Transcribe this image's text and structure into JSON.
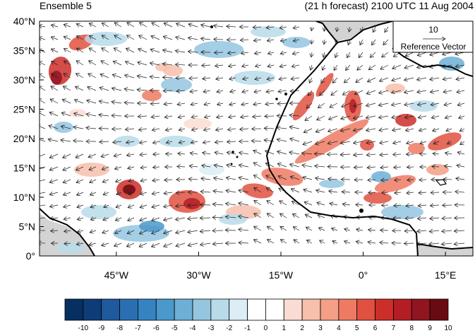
{
  "title_left": "Ensemble 5",
  "title_right": "(21 h forecast) 2100 UTC 11 Aug 2004",
  "map": {
    "lat_range": [
      0,
      40
    ],
    "lon_range": [
      -59,
      20
    ],
    "lat_ticks": [
      "40°N",
      "35°N",
      "30°N",
      "25°N",
      "20°N",
      "15°N",
      "10°N",
      "5°N",
      "0°"
    ],
    "lon_ticks": [
      "45°W",
      "30°W",
      "15°W",
      "0°",
      "15°E"
    ],
    "land_color": "#d3d3d3"
  },
  "reference_vector": {
    "magnitude": "10",
    "label": "Reference Vector"
  },
  "colorbar": {
    "labels": [
      "-10",
      "-9",
      "-8",
      "-7",
      "-6",
      "-5",
      "-4",
      "-3",
      "-2",
      "-1",
      "0",
      "1",
      "2",
      "3",
      "4",
      "5",
      "6",
      "7",
      "8",
      "9",
      "10"
    ],
    "colors": [
      "#053061",
      "#0d3c78",
      "#1f5a9e",
      "#2a6fb3",
      "#3583c1",
      "#4b98cb",
      "#6dafd6",
      "#94c6e0",
      "#b8dbea",
      "#dcedf5",
      "#ffffff",
      "#ffffff",
      "#fbdcd2",
      "#f7bfac",
      "#f49f86",
      "#ee7a63",
      "#e1513f",
      "#cc2e29",
      "#b41d24",
      "#901520",
      "#6a0b12"
    ]
  }
}
